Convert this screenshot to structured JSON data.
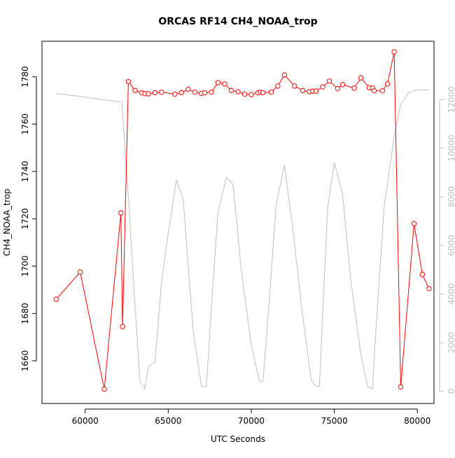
{
  "chart_data": {
    "type": "line",
    "title": "ORCAS RF14 CH4_NOAA_trop",
    "xlabel": "UTC Seconds",
    "ylabel": "CH4_NOAA_trop",
    "xlim": [
      57400,
      81000
    ],
    "ylim": [
      1642,
      1795
    ],
    "y2lim": [
      -500,
      14400
    ],
    "x_ticks": [
      60000,
      65000,
      70000,
      75000,
      80000
    ],
    "y_ticks": [
      1660,
      1680,
      1700,
      1720,
      1740,
      1760,
      1780
    ],
    "y2_ticks": [
      0,
      2000,
      4000,
      6000,
      8000,
      10000,
      12000
    ],
    "grid": false,
    "colors": {
      "ch4": "#ff0000",
      "altitude": "#bebebe",
      "axis": "#000000"
    },
    "series": [
      {
        "axis": "left",
        "style": "line+points",
        "x": [
          58250,
          59700,
          61150,
          62150,
          62250,
          62600,
          63000,
          63400,
          63600,
          63800,
          64200,
          64600,
          65400,
          65800,
          66200,
          66600,
          67000,
          67200,
          67600,
          68000,
          68400,
          68800,
          69200,
          69600,
          70000,
          70400,
          70550,
          70700,
          71200,
          71600,
          72000,
          72600,
          73100,
          73500,
          73700,
          73900,
          74300,
          74700,
          75200,
          75500,
          76200,
          76600,
          77100,
          77300,
          77400,
          77900,
          78200,
          78600,
          79000,
          79800,
          80300,
          80700
        ],
        "values": [
          1686,
          1697.5,
          1648,
          1722.5,
          1674.5,
          1778,
          1774.2,
          1773.2,
          1772.9,
          1772.8,
          1773.3,
          1773.5,
          1772.6,
          1773.3,
          1774.7,
          1773.5,
          1773,
          1773.2,
          1773.5,
          1777.5,
          1777,
          1774.2,
          1773.7,
          1772.6,
          1772.5,
          1773.2,
          1773.5,
          1773.3,
          1773.5,
          1776.1,
          1780.8,
          1776.1,
          1774.2,
          1773.7,
          1773.9,
          1774,
          1775.7,
          1778.2,
          1775,
          1776.7,
          1775.2,
          1779.5,
          1775.4,
          1775.2,
          1774.1,
          1774.1,
          1777,
          1790.5,
          1649,
          1718,
          1696.5,
          1690.5
        ]
      },
      {
        "axis": "right",
        "style": "line",
        "x": [
          58250,
          59500,
          61000,
          62200,
          62600,
          63000,
          63300,
          63600,
          63800,
          64200,
          64600,
          65000,
          65500,
          65900,
          66500,
          67000,
          67300,
          67600,
          68000,
          68500,
          68900,
          69400,
          70000,
          70500,
          70700,
          71000,
          71500,
          72000,
          72500,
          73000,
          73600,
          73900,
          74100,
          74600,
          75000,
          75500,
          76000,
          76600,
          77000,
          77300,
          77500,
          78000,
          78600,
          79000,
          79500,
          80000,
          80700
        ],
        "values": [
          12250,
          12150,
          12000,
          11900,
          8000,
          3500,
          400,
          100,
          1000,
          1200,
          4500,
          6500,
          8700,
          7900,
          2500,
          200,
          200,
          3500,
          7400,
          8800,
          8500,
          5000,
          1900,
          400,
          400,
          3000,
          7700,
          9300,
          6700,
          3600,
          500,
          200,
          200,
          7600,
          9400,
          8100,
          4500,
          1500,
          200,
          100,
          2500,
          7600,
          10500,
          11800,
          12300,
          12400,
          12400
        ]
      }
    ]
  }
}
